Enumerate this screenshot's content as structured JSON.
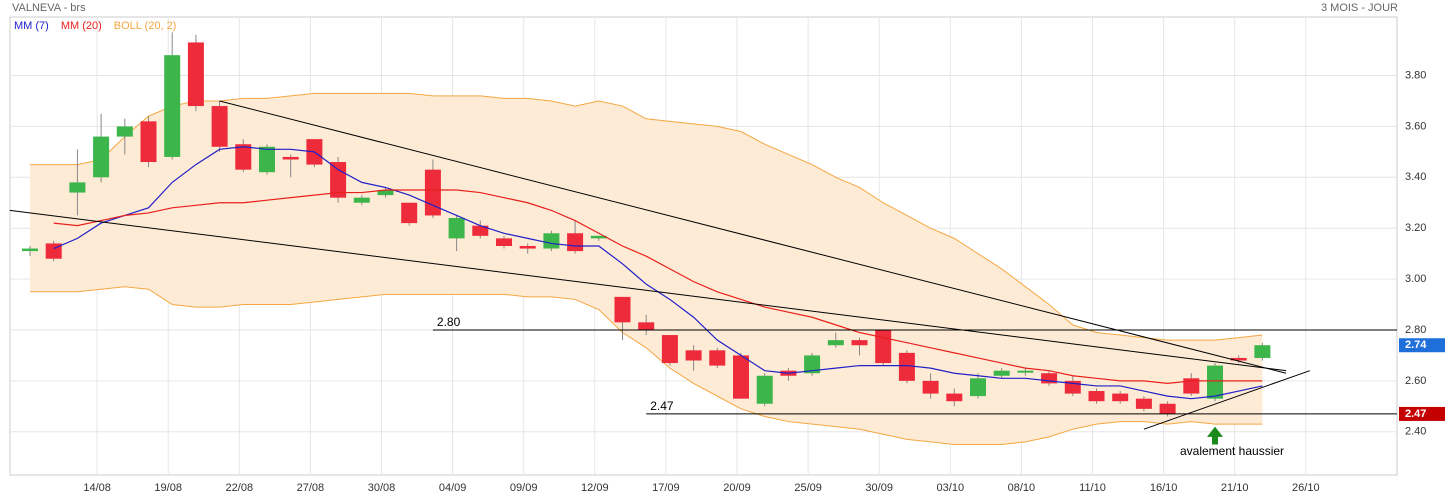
{
  "chart_data": {
    "type": "candlestick",
    "title": "VALNEVA - brs",
    "period": "3 MOIS - JOUR",
    "categories": [
      null,
      null,
      null,
      "14/08",
      null,
      null,
      "19/08",
      null,
      null,
      "22/08",
      null,
      null,
      "27/08",
      null,
      null,
      "30/08",
      null,
      null,
      "04/09",
      null,
      null,
      "09/09",
      null,
      null,
      "12/09",
      null,
      null,
      "17/09",
      null,
      null,
      "20/09",
      null,
      null,
      "25/09",
      null,
      null,
      "30/09",
      null,
      null,
      "03/10",
      null,
      null,
      "08/10",
      null,
      null,
      "11/10",
      null,
      null,
      "16/10",
      null,
      null,
      "21/10",
      null,
      null,
      "26/10"
    ],
    "open": [
      3.11,
      3.14,
      3.34,
      3.4,
      3.56,
      3.62,
      3.48,
      3.93,
      3.68,
      3.53,
      3.42,
      3.48,
      3.55,
      3.46,
      3.3,
      3.33,
      3.3,
      3.43,
      3.16,
      3.21,
      3.16,
      3.13,
      3.12,
      3.18,
      3.16,
      2.93,
      2.83,
      2.78,
      2.72,
      2.72,
      2.7,
      2.51,
      2.64,
      2.63,
      2.74,
      2.76,
      2.8,
      2.71,
      2.6,
      2.55,
      2.54,
      2.62,
      2.635,
      2.63,
      2.6,
      2.56,
      2.55,
      2.53,
      2.51,
      2.61,
      2.53,
      2.69,
      2.69,
      null,
      null
    ],
    "high": [
      3.13,
      3.15,
      3.51,
      3.65,
      3.63,
      3.64,
      3.97,
      3.96,
      3.7,
      3.55,
      3.53,
      3.49,
      3.55,
      3.48,
      3.33,
      3.36,
      3.3,
      3.47,
      3.25,
      3.23,
      3.17,
      3.14,
      3.19,
      3.23,
      3.17,
      2.93,
      2.86,
      2.78,
      2.74,
      2.73,
      2.71,
      2.63,
      2.65,
      2.71,
      2.79,
      2.77,
      2.8,
      2.72,
      2.63,
      2.57,
      2.63,
      2.65,
      2.65,
      2.64,
      2.62,
      2.57,
      2.56,
      2.54,
      2.52,
      2.63,
      2.67,
      2.7,
      2.75,
      null,
      null
    ],
    "low": [
      3.09,
      3.07,
      3.25,
      3.38,
      3.49,
      3.44,
      3.47,
      3.66,
      3.5,
      3.42,
      3.41,
      3.4,
      3.44,
      3.3,
      3.29,
      3.32,
      3.21,
      3.24,
      3.11,
      3.16,
      3.12,
      3.1,
      3.11,
      3.1,
      3.15,
      2.76,
      2.78,
      2.66,
      2.64,
      2.65,
      2.53,
      2.5,
      2.6,
      2.62,
      2.73,
      2.7,
      2.66,
      2.59,
      2.53,
      2.5,
      2.53,
      2.61,
      2.62,
      2.58,
      2.54,
      2.51,
      2.51,
      2.48,
      2.46,
      2.54,
      2.52,
      2.67,
      2.68,
      null,
      null
    ],
    "close": [
      3.12,
      3.08,
      3.38,
      3.56,
      3.6,
      3.46,
      3.88,
      3.68,
      3.52,
      3.43,
      3.52,
      3.47,
      3.45,
      3.32,
      3.32,
      3.35,
      3.22,
      3.25,
      3.24,
      3.17,
      3.13,
      3.12,
      3.18,
      3.11,
      3.17,
      2.83,
      2.8,
      2.67,
      2.68,
      2.66,
      2.53,
      2.62,
      2.62,
      2.7,
      2.76,
      2.74,
      2.67,
      2.6,
      2.55,
      2.52,
      2.61,
      2.64,
      2.64,
      2.59,
      2.55,
      2.52,
      2.52,
      2.49,
      2.47,
      2.55,
      2.66,
      2.68,
      2.74,
      null,
      null
    ],
    "up_color": "#3cb54a",
    "down_color": "#ee2b3b",
    "overlays": [
      {
        "name": "MM (7)",
        "color": "#2020c8",
        "values": [
          null,
          3.12,
          3.16,
          3.22,
          3.25,
          3.28,
          3.38,
          3.45,
          3.51,
          3.52,
          3.51,
          3.51,
          3.5,
          3.43,
          3.38,
          3.36,
          3.33,
          3.29,
          3.25,
          3.21,
          3.18,
          3.16,
          3.14,
          3.13,
          3.13,
          3.06,
          2.98,
          2.92,
          2.85,
          2.76,
          2.7,
          2.64,
          2.63,
          2.64,
          2.65,
          2.66,
          2.66,
          2.66,
          2.65,
          2.63,
          2.62,
          2.61,
          2.61,
          2.6,
          2.59,
          2.58,
          2.58,
          2.56,
          2.54,
          2.53,
          2.54,
          2.56,
          2.58,
          null,
          null
        ]
      },
      {
        "name": "MM (20)",
        "color": "#e8201c",
        "values": [
          null,
          3.22,
          3.21,
          3.23,
          3.25,
          3.26,
          3.28,
          3.29,
          3.3,
          3.3,
          3.31,
          3.32,
          3.33,
          3.34,
          3.34,
          3.35,
          3.35,
          3.35,
          3.35,
          3.34,
          3.32,
          3.3,
          3.27,
          3.23,
          3.18,
          3.13,
          3.09,
          3.04,
          2.99,
          2.95,
          2.92,
          2.89,
          2.87,
          2.85,
          2.82,
          2.79,
          2.77,
          2.75,
          2.73,
          2.71,
          2.69,
          2.67,
          2.65,
          2.64,
          2.62,
          2.61,
          2.6,
          2.6,
          2.59,
          2.6,
          2.6,
          2.6,
          2.6,
          null,
          null
        ]
      }
    ],
    "bollinger": {
      "name": "BOLL (20, 2)",
      "color": "#f5a742",
      "fill": "#fdebd6",
      "upper": [
        3.45,
        3.45,
        3.45,
        3.47,
        3.56,
        3.64,
        3.68,
        3.7,
        3.7,
        3.71,
        3.71,
        3.72,
        3.73,
        3.73,
        3.73,
        3.73,
        3.73,
        3.72,
        3.72,
        3.72,
        3.71,
        3.71,
        3.7,
        3.68,
        3.7,
        3.68,
        3.63,
        3.62,
        3.61,
        3.6,
        3.58,
        3.53,
        3.49,
        3.45,
        3.4,
        3.36,
        3.3,
        3.25,
        3.2,
        3.16,
        3.1,
        3.04,
        2.97,
        2.9,
        2.82,
        2.79,
        2.78,
        2.77,
        2.76,
        2.76,
        2.76,
        2.77,
        2.78,
        null,
        null
      ],
      "lower": [
        2.95,
        2.95,
        2.95,
        2.96,
        2.97,
        2.96,
        2.9,
        2.89,
        2.89,
        2.9,
        2.9,
        2.9,
        2.91,
        2.92,
        2.93,
        2.94,
        2.94,
        2.94,
        2.94,
        2.94,
        2.94,
        2.93,
        2.93,
        2.92,
        2.88,
        2.79,
        2.73,
        2.65,
        2.59,
        2.54,
        2.49,
        2.46,
        2.44,
        2.43,
        2.42,
        2.41,
        2.39,
        2.37,
        2.36,
        2.35,
        2.35,
        2.35,
        2.36,
        2.38,
        2.41,
        2.43,
        2.44,
        2.44,
        2.43,
        2.44,
        2.43,
        2.43,
        2.43,
        null,
        null
      ]
    },
    "ylim": [
      2.23,
      4.03
    ],
    "yticks": [
      {
        "value": 2.4,
        "label": "2.40"
      },
      {
        "value": 2.6,
        "label": "2.60"
      },
      {
        "value": 2.8,
        "label": "2.80"
      },
      {
        "value": 3.0,
        "label": "3.00"
      },
      {
        "value": 3.2,
        "label": "3.20"
      },
      {
        "value": 3.4,
        "label": "3.40"
      },
      {
        "value": 3.6,
        "label": "3.60"
      },
      {
        "value": 3.8,
        "label": "3.80"
      }
    ],
    "grid": true,
    "levels": [
      {
        "value": 2.8,
        "label": "2.80",
        "start": 17
      },
      {
        "value": 2.47,
        "label": "2.47",
        "start": 26
      }
    ],
    "trend_lines": [
      {
        "from": [
          8,
          3.7
        ],
        "to": [
          53,
          2.63
        ]
      },
      {
        "from": [
          -0.85,
          3.27
        ],
        "to": [
          53,
          2.64
        ]
      },
      {
        "from": [
          47,
          2.41
        ],
        "to": [
          54,
          2.64
        ]
      }
    ],
    "price_tags": [
      {
        "value": 2.74,
        "label": "2.74",
        "color": "#1e6fd9"
      },
      {
        "value": 2.47,
        "label": "2.47",
        "color": "#c40000"
      }
    ],
    "annotation": {
      "text": "avalement haussier",
      "at": 50,
      "color": "#1a8a1a"
    }
  }
}
